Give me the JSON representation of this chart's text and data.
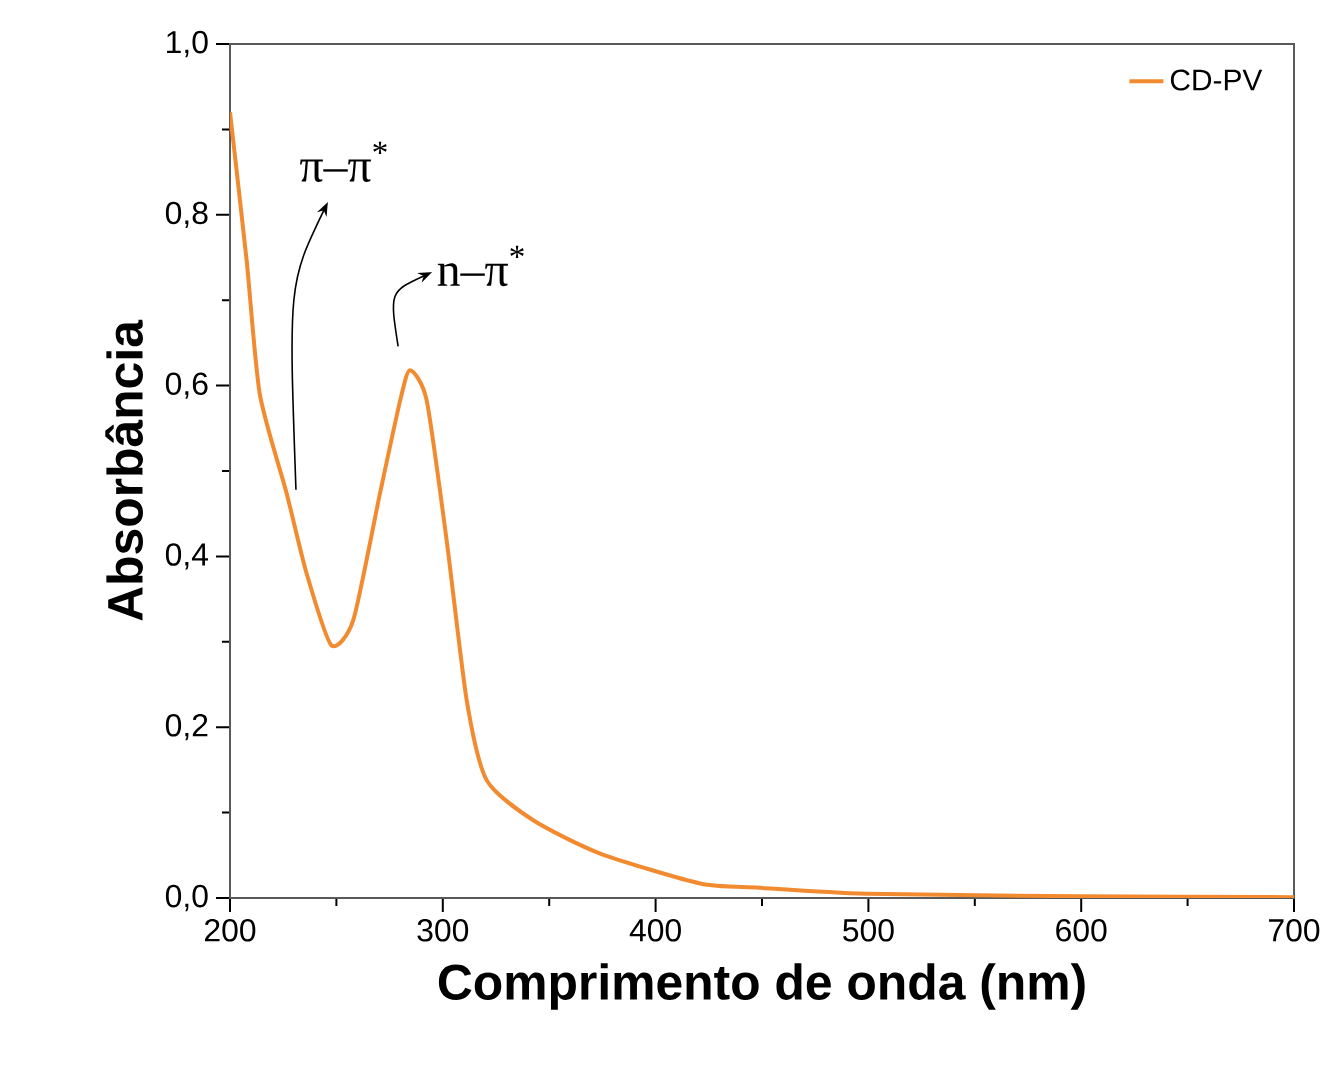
{
  "chart_data": {
    "type": "line",
    "xlabel": "Comprimento de onda (nm)",
    "ylabel": "Absorbância",
    "x": [
      200,
      207.8,
      214,
      226.6,
      236,
      247.6,
      258,
      270.5,
      280,
      284.6,
      292.4,
      301.8,
      311.2,
      320.6,
      342.5,
      374,
      421,
      449,
      499,
      600,
      700
    ],
    "series": [
      {
        "name": "CD-PV",
        "color": "#f28a30",
        "values": [
          0.92,
          0.747,
          0.59,
          0.474,
          0.38,
          0.296,
          0.326,
          0.474,
          0.583,
          0.618,
          0.583,
          0.419,
          0.232,
          0.138,
          0.091,
          0.052,
          0.017,
          0.012,
          0.005,
          0.002,
          0.001
        ]
      }
    ],
    "xlim": [
      200,
      700
    ],
    "ylim": [
      0,
      1
    ],
    "xticks": [
      200,
      300,
      400,
      500,
      600,
      700
    ],
    "yticks": [
      {
        "value": 0,
        "label": "0,0"
      },
      {
        "value": 0.2,
        "label": "0,2"
      },
      {
        "value": 0.4,
        "label": "0,4"
      },
      {
        "value": 0.6,
        "label": "0,6"
      },
      {
        "value": 0.8,
        "label": "0,8"
      },
      {
        "value": 1,
        "label": "1,0"
      }
    ],
    "annotations": [
      "π–π$^{*}$",
      "n–π$^{*}$"
    ],
    "legend": "top right",
    "grid": false,
    "marker": "none",
    "line_style": "solid"
  }
}
